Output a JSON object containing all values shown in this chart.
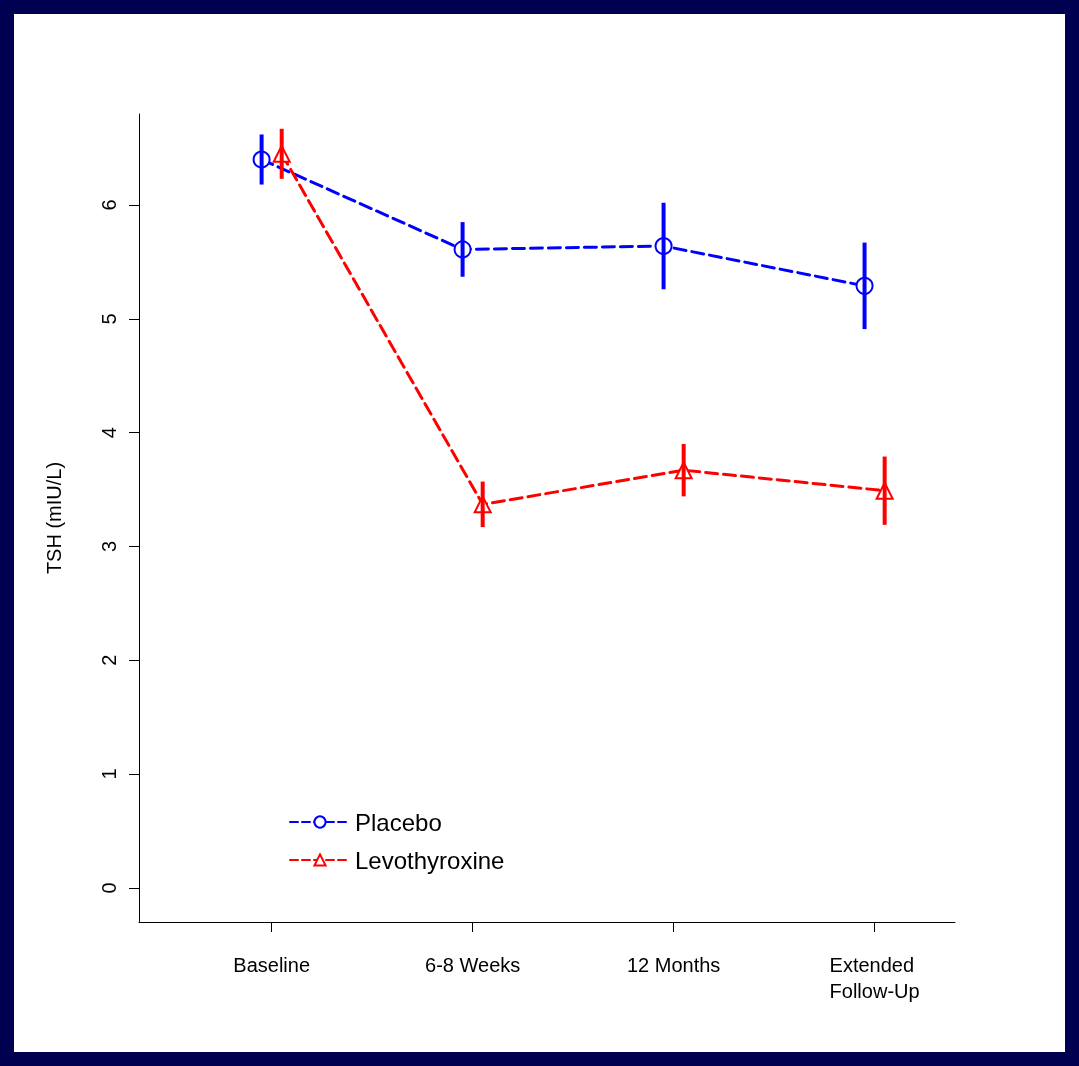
{
  "chart_data": {
    "type": "line",
    "ylabel": "TSH (mIU/L)",
    "categories": [
      "Baseline",
      "6-8 Weeks",
      "12 Months",
      "Extended Follow-Up"
    ],
    "series": [
      {
        "name": "Placebo",
        "color": "#0000ff",
        "marker": "circle",
        "values": [
          6.4,
          5.61,
          5.64,
          5.29
        ],
        "errors": [
          0.22,
          0.24,
          0.38,
          0.38
        ]
      },
      {
        "name": "Levothyroxine",
        "color": "#ff0000",
        "marker": "triangle",
        "values": [
          6.45,
          3.37,
          3.67,
          3.49
        ],
        "errors": [
          0.22,
          0.2,
          0.23,
          0.3
        ]
      }
    ],
    "ylim": [
      -0.3,
      6.8
    ],
    "yticks": [
      0,
      1,
      2,
      3,
      4,
      5,
      6
    ],
    "grid": false,
    "legend": "bottom left",
    "line_style": "dashed"
  }
}
